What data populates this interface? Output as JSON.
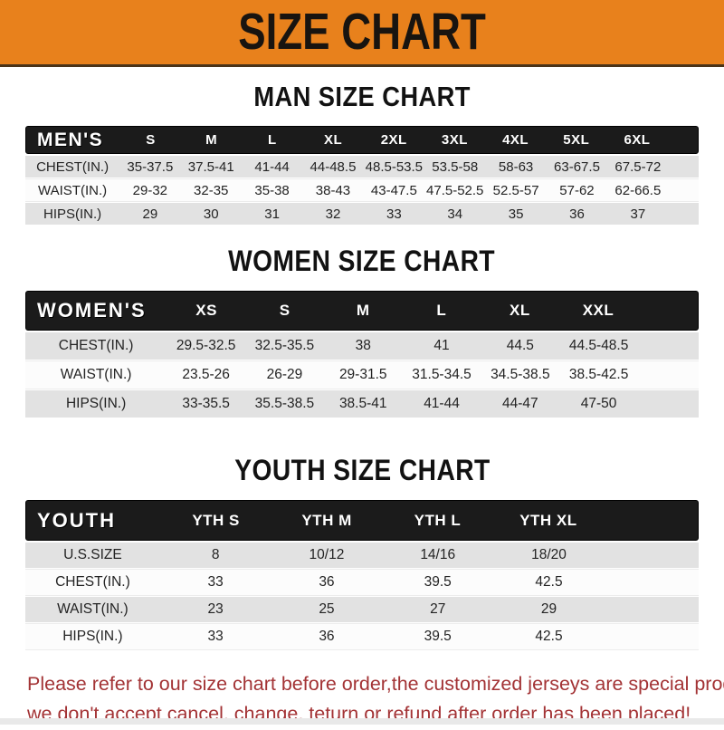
{
  "banner": {
    "title": "SIZE CHART"
  },
  "headings": {
    "men": "MAN SIZE CHART",
    "women": "WOMEN SIZE CHART",
    "youth": "YOUTH SIZE CHART"
  },
  "sections": [
    {
      "id": "men",
      "header_label": "MEN'S",
      "columns": [
        "S",
        "M",
        "L",
        "XL",
        "2XL",
        "3XL",
        "4XL",
        "5XL",
        "6XL"
      ],
      "rows": [
        {
          "label": "CHEST(IN.)",
          "values": [
            "35-37.5",
            "37.5-41",
            "41-44",
            "44-48.5",
            "48.5-53.5",
            "53.5-58",
            "58-63",
            "63-67.5",
            "67.5-72"
          ]
        },
        {
          "label": "WAIST(IN.)",
          "values": [
            "29-32",
            "32-35",
            "35-38",
            "38-43",
            "43-47.5",
            "47.5-52.5",
            "52.5-57",
            "57-62",
            "62-66.5"
          ]
        },
        {
          "label": "HIPS(IN.)",
          "values": [
            "29",
            "30",
            "31",
            "32",
            "33",
            "34",
            "35",
            "36",
            "37"
          ]
        }
      ]
    },
    {
      "id": "women",
      "header_label": "WOMEN'S",
      "columns": [
        "XS",
        "S",
        "M",
        "L",
        "XL",
        "XXL"
      ],
      "rows": [
        {
          "label": "CHEST(IN.)",
          "values": [
            "29.5-32.5",
            "32.5-35.5",
            "38",
            "41",
            "44.5",
            "44.5-48.5"
          ]
        },
        {
          "label": "WAIST(IN.)",
          "values": [
            "23.5-26",
            "26-29",
            "29-31.5",
            "31.5-34.5",
            "34.5-38.5",
            "38.5-42.5"
          ]
        },
        {
          "label": "HIPS(IN.)",
          "values": [
            "33-35.5",
            "35.5-38.5",
            "38.5-41",
            "41-44",
            "44-47",
            "47-50"
          ]
        }
      ]
    },
    {
      "id": "youth",
      "header_label": "YOUTH",
      "columns": [
        "YTH S",
        "YTH M",
        "YTH L",
        "YTH XL"
      ],
      "rows": [
        {
          "label": "U.S.SIZE",
          "values": [
            "8",
            "10/12",
            "14/16",
            "18/20"
          ]
        },
        {
          "label": "CHEST(IN.)",
          "values": [
            "33",
            "36",
            "39.5",
            "42.5"
          ]
        },
        {
          "label": "WAIST(IN.)",
          "values": [
            "23",
            "25",
            "27",
            "29"
          ]
        },
        {
          "label": "HIPS(IN.)",
          "values": [
            "33",
            "36",
            "39.5",
            "42.5"
          ]
        }
      ]
    }
  ],
  "footer": {
    "line1": "Please refer to our size chart before order,the customized jerseys are special products,",
    "line2": "we don't accept cancel, change, teturn or refund after order has been placed!"
  },
  "colors": {
    "banner_orange": "#E8811C",
    "banner_text": "#181410",
    "bar_black": "#1b1b1b",
    "bar_text": "#ffffff",
    "row_shade_gray": "#E2E2E2",
    "row_plain_white": "#FCFCFC",
    "footer_red": "#A33335"
  }
}
